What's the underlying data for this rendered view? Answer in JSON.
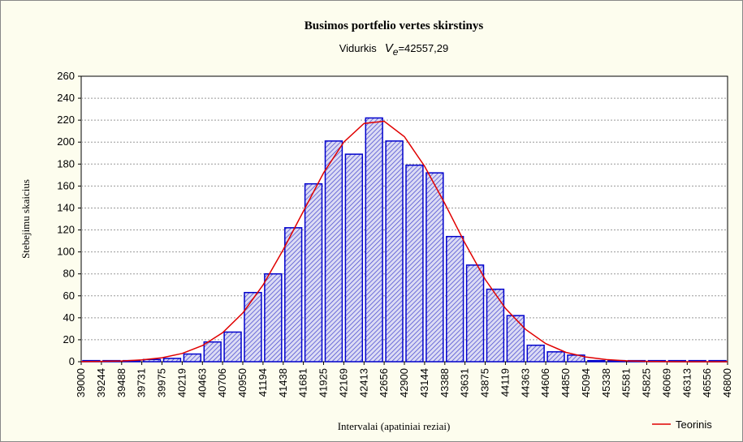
{
  "chart_data": {
    "type": "histogram",
    "title": "Busimos portfelio vertes skirstinys",
    "subtitle": {
      "prefix": "Vidurkis",
      "symbol": "V",
      "subscript": "e",
      "value": "=42557,29"
    },
    "xlabel": "Intervalai (apatiniai reziai)",
    "ylabel": "Stebejimu skaicius",
    "bins": [
      39000,
      39244,
      39488,
      39731,
      39975,
      40219,
      40463,
      40706,
      40950,
      41194,
      41438,
      41681,
      41925,
      42169,
      42413,
      42656,
      42900,
      43144,
      43388,
      43631,
      43875,
      44119,
      44363,
      44606,
      44850,
      45094,
      45338,
      45581,
      45825,
      46069,
      46313,
      46556,
      46800
    ],
    "counts": [
      1,
      1,
      1,
      2,
      3,
      7,
      18,
      27,
      63,
      80,
      122,
      162,
      201,
      189,
      222,
      201,
      179,
      172,
      114,
      88,
      66,
      42,
      15,
      9,
      6,
      1,
      1,
      1,
      1,
      1,
      1,
      1
    ],
    "color": "#0000cc",
    "curve": {
      "name": "Teorinis",
      "color": "#e00000",
      "x": [
        39000,
        39244,
        39488,
        39731,
        39975,
        40219,
        40463,
        40706,
        40950,
        41194,
        41438,
        41681,
        41925,
        42169,
        42413,
        42656,
        42900,
        43144,
        43388,
        43631,
        43875,
        44119,
        44363,
        44606,
        44850,
        45094,
        45338,
        45581,
        45825,
        46069,
        46313,
        46556,
        46800
      ],
      "values": [
        0.1,
        0.3,
        0.7,
        1.6,
        3.6,
        7.5,
        14.7,
        26.4,
        44.4,
        69.8,
        102,
        137,
        172,
        200,
        217,
        219,
        205,
        178,
        144,
        108,
        75,
        48.6,
        29.4,
        16.5,
        8.5,
        4.2,
        1.9,
        0.8,
        0.3,
        0.1,
        0,
        0,
        0
      ]
    },
    "xlim": [
      39000,
      46800
    ],
    "ylim": [
      0,
      260
    ],
    "yticks": [
      0,
      20,
      40,
      60,
      80,
      100,
      120,
      140,
      160,
      180,
      200,
      220,
      240,
      260
    ],
    "grid": true,
    "legend": "bottom-right"
  }
}
